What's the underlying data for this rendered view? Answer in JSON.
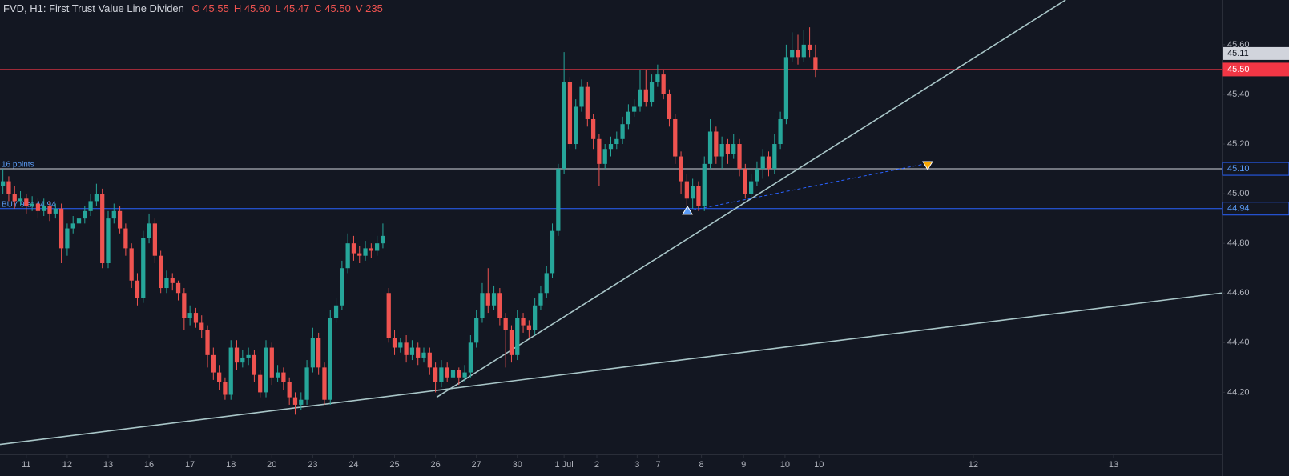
{
  "chart_data": {
    "type": "candlestick",
    "title": "FVD, H1: First Trust Value Line Dividen",
    "header_fields": [
      {
        "label": "O",
        "value": 45.55
      },
      {
        "label": "H",
        "value": 45.6,
        "value_label": "45.60"
      },
      {
        "label": "L",
        "value": 45.47
      },
      {
        "label": "C",
        "value": 45.5,
        "value_label": "45.50"
      },
      {
        "label": "V",
        "value": 235
      }
    ],
    "up_color": "#26a69a",
    "down_color": "#ef5350",
    "xlim": [
      -0.5,
      208.5
    ],
    "ylim": [
      43.95,
      45.78
    ],
    "grid": false,
    "xticks": [
      {
        "value": 4,
        "label": "11"
      },
      {
        "value": 11,
        "label": "12"
      },
      {
        "value": 18,
        "label": "13"
      },
      {
        "value": 25,
        "label": "16"
      },
      {
        "value": 32,
        "label": "17"
      },
      {
        "value": 39,
        "label": "18"
      },
      {
        "value": 46,
        "label": "20"
      },
      {
        "value": 53,
        "label": "23"
      },
      {
        "value": 60,
        "label": "24"
      },
      {
        "value": 67,
        "label": "25"
      },
      {
        "value": 74,
        "label": "26"
      },
      {
        "value": 81,
        "label": "27"
      },
      {
        "value": 88,
        "label": "30"
      },
      {
        "value": 96,
        "label": "1 Jul"
      },
      {
        "value": 101.6,
        "label": "2"
      },
      {
        "value": 108.5,
        "label": "3"
      },
      {
        "value": 112.1,
        "label": "7"
      },
      {
        "value": 119.5,
        "label": "8"
      },
      {
        "value": 126.7,
        "label": "9"
      },
      {
        "value": 133.8,
        "label": "10"
      },
      {
        "value": 139.6,
        "label": "10"
      },
      {
        "value": 166,
        "label": "12"
      },
      {
        "value": 190,
        "label": "13"
      }
    ],
    "yticks": [
      {
        "value": 44.2,
        "label": "44.20"
      },
      {
        "value": 44.4,
        "label": "44.40"
      },
      {
        "value": 44.6,
        "label": "44.60"
      },
      {
        "value": 44.8,
        "label": "44.80"
      },
      {
        "value": 45.0,
        "label": "45.00"
      },
      {
        "value": 45.2,
        "label": "45.20"
      },
      {
        "value": 45.4,
        "label": "45.40"
      },
      {
        "value": 45.6,
        "label": "45.60"
      }
    ],
    "ohlc": [
      [
        45.03,
        45.1,
        45.0,
        45.05
      ],
      [
        45.05,
        45.07,
        44.97,
        45.0
      ],
      [
        45.0,
        45.03,
        44.94,
        44.97
      ],
      [
        44.97,
        45.01,
        44.95,
        44.98
      ],
      [
        44.98,
        45.0,
        44.92,
        44.95
      ],
      [
        44.95,
        44.99,
        44.93,
        44.96
      ],
      [
        44.96,
        44.98,
        44.9,
        44.93
      ],
      [
        44.93,
        44.98,
        44.91,
        44.95
      ],
      [
        44.95,
        44.97,
        44.89,
        44.92
      ],
      [
        44.92,
        44.96,
        44.9,
        44.94
      ],
      [
        44.94,
        44.96,
        44.72,
        44.78
      ],
      [
        44.78,
        44.88,
        44.75,
        44.86
      ],
      [
        44.86,
        44.91,
        44.84,
        44.88
      ],
      [
        44.88,
        44.93,
        44.86,
        44.9
      ],
      [
        44.9,
        44.95,
        44.88,
        44.93
      ],
      [
        44.93,
        45.0,
        44.91,
        44.97
      ],
      [
        44.97,
        45.04,
        44.95,
        45.0
      ],
      [
        45.0,
        45.02,
        44.7,
        44.72
      ],
      [
        44.72,
        44.93,
        44.7,
        44.9
      ],
      [
        44.9,
        44.96,
        44.88,
        44.93
      ],
      [
        44.93,
        44.95,
        44.84,
        44.86
      ],
      [
        44.86,
        44.88,
        44.75,
        44.78
      ],
      [
        44.78,
        44.8,
        44.62,
        44.65
      ],
      [
        44.65,
        44.68,
        44.55,
        44.58
      ],
      [
        44.58,
        44.85,
        44.56,
        44.82
      ],
      [
        44.82,
        44.92,
        44.8,
        44.88
      ],
      [
        44.88,
        44.9,
        44.72,
        44.75
      ],
      [
        44.75,
        44.77,
        44.6,
        44.62
      ],
      [
        44.62,
        44.69,
        44.6,
        44.66
      ],
      [
        44.66,
        44.68,
        44.61,
        44.64
      ],
      [
        44.64,
        44.65,
        44.57,
        44.6
      ],
      [
        44.6,
        44.62,
        44.45,
        44.5
      ],
      [
        44.5,
        44.55,
        44.47,
        44.52
      ],
      [
        44.52,
        44.54,
        44.46,
        44.48
      ],
      [
        44.48,
        44.51,
        44.42,
        44.45
      ],
      [
        44.45,
        44.47,
        44.3,
        44.35
      ],
      [
        44.35,
        44.38,
        44.25,
        44.28
      ],
      [
        44.28,
        44.31,
        44.21,
        44.24
      ],
      [
        44.24,
        44.26,
        44.17,
        44.19
      ],
      [
        44.19,
        44.41,
        44.17,
        44.38
      ],
      [
        44.38,
        44.41,
        44.29,
        44.32
      ],
      [
        44.32,
        44.37,
        44.3,
        44.34
      ],
      [
        44.34,
        44.38,
        44.31,
        44.35
      ],
      [
        44.35,
        44.37,
        44.24,
        44.27
      ],
      [
        44.27,
        44.29,
        44.18,
        44.2
      ],
      [
        44.2,
        44.41,
        44.18,
        44.38
      ],
      [
        44.38,
        44.4,
        44.23,
        44.26
      ],
      [
        44.26,
        44.31,
        44.24,
        44.28
      ],
      [
        44.28,
        44.3,
        44.21,
        44.24
      ],
      [
        44.24,
        44.26,
        44.15,
        44.18
      ],
      [
        44.18,
        44.2,
        44.11,
        44.15
      ],
      [
        44.15,
        44.2,
        44.13,
        44.17
      ],
      [
        44.17,
        44.33,
        44.15,
        44.3
      ],
      [
        44.3,
        44.46,
        44.28,
        44.42
      ],
      [
        44.42,
        44.44,
        44.27,
        44.3
      ],
      [
        44.3,
        44.32,
        44.15,
        44.17
      ],
      [
        44.17,
        44.53,
        44.15,
        44.5
      ],
      [
        44.5,
        44.58,
        44.48,
        44.55
      ],
      [
        44.55,
        44.73,
        44.53,
        44.7
      ],
      [
        44.7,
        44.84,
        44.68,
        44.8
      ],
      [
        44.8,
        44.83,
        44.73,
        44.76
      ],
      [
        44.76,
        44.79,
        44.72,
        44.75
      ],
      [
        44.75,
        44.81,
        44.73,
        44.78
      ],
      [
        44.78,
        44.8,
        44.74,
        44.77
      ],
      [
        44.77,
        44.83,
        44.75,
        44.8
      ],
      [
        44.8,
        44.88,
        44.78,
        44.83
      ],
      [
        44.6,
        44.62,
        44.4,
        44.42
      ],
      [
        44.42,
        44.45,
        44.35,
        44.38
      ],
      [
        44.38,
        44.42,
        44.36,
        44.4
      ],
      [
        44.4,
        44.43,
        44.32,
        44.35
      ],
      [
        44.35,
        44.41,
        44.33,
        44.38
      ],
      [
        44.38,
        44.4,
        44.31,
        44.34
      ],
      [
        44.34,
        44.38,
        44.32,
        44.36
      ],
      [
        44.36,
        44.38,
        44.27,
        44.3
      ],
      [
        44.3,
        44.32,
        44.2,
        44.24
      ],
      [
        44.24,
        44.33,
        44.22,
        44.3
      ],
      [
        44.3,
        44.32,
        44.24,
        44.26
      ],
      [
        44.26,
        44.31,
        44.24,
        44.29
      ],
      [
        44.29,
        44.3,
        44.23,
        44.26
      ],
      [
        44.26,
        44.31,
        44.24,
        44.28
      ],
      [
        44.28,
        44.43,
        44.26,
        44.4
      ],
      [
        44.4,
        44.53,
        44.38,
        44.5
      ],
      [
        44.5,
        44.64,
        44.48,
        44.6
      ],
      [
        44.6,
        44.7,
        44.52,
        44.55
      ],
      [
        44.55,
        44.63,
        44.53,
        44.6
      ],
      [
        44.6,
        44.62,
        44.47,
        44.5
      ],
      [
        44.5,
        44.52,
        44.3,
        44.45
      ],
      [
        44.45,
        44.47,
        44.32,
        44.35
      ],
      [
        44.35,
        44.53,
        44.33,
        44.5
      ],
      [
        44.5,
        44.52,
        44.44,
        44.47
      ],
      [
        44.47,
        44.49,
        44.42,
        44.45
      ],
      [
        44.45,
        44.58,
        44.43,
        44.55
      ],
      [
        44.55,
        44.63,
        44.53,
        44.6
      ],
      [
        44.6,
        44.71,
        44.58,
        44.68
      ],
      [
        44.68,
        44.88,
        44.66,
        44.85
      ],
      [
        44.85,
        45.12,
        44.83,
        45.1
      ],
      [
        45.1,
        45.57,
        45.08,
        45.45
      ],
      [
        45.45,
        45.47,
        45.18,
        45.2
      ],
      [
        45.2,
        45.38,
        45.18,
        45.35
      ],
      [
        45.35,
        45.46,
        45.33,
        45.43
      ],
      [
        45.43,
        45.45,
        45.27,
        45.3
      ],
      [
        45.3,
        45.32,
        45.18,
        45.22
      ],
      [
        45.22,
        45.24,
        45.03,
        45.12
      ],
      [
        45.12,
        45.2,
        45.1,
        45.18
      ],
      [
        45.18,
        45.23,
        45.15,
        45.2
      ],
      [
        45.2,
        45.25,
        45.18,
        45.22
      ],
      [
        45.22,
        45.31,
        45.2,
        45.28
      ],
      [
        45.28,
        45.36,
        45.26,
        45.33
      ],
      [
        45.33,
        45.38,
        45.31,
        45.35
      ],
      [
        45.35,
        45.5,
        45.33,
        45.42
      ],
      [
        45.42,
        45.5,
        45.35,
        45.37
      ],
      [
        45.37,
        45.48,
        45.35,
        45.45
      ],
      [
        45.45,
        45.52,
        45.43,
        45.48
      ],
      [
        45.48,
        45.5,
        45.38,
        45.4
      ],
      [
        45.4,
        45.42,
        45.27,
        45.3
      ],
      [
        45.3,
        45.32,
        45.12,
        45.15
      ],
      [
        45.15,
        45.17,
        45.0,
        45.05
      ],
      [
        45.05,
        45.08,
        44.95,
        44.98
      ],
      [
        44.98,
        45.06,
        44.94,
        45.03
      ],
      [
        45.03,
        45.05,
        44.93,
        44.95
      ],
      [
        44.95,
        45.15,
        44.93,
        45.12
      ],
      [
        45.12,
        45.3,
        45.1,
        45.25
      ],
      [
        45.25,
        45.27,
        45.12,
        45.15
      ],
      [
        45.15,
        45.23,
        45.1,
        45.2
      ],
      [
        45.2,
        45.22,
        45.12,
        45.16
      ],
      [
        45.16,
        45.24,
        45.14,
        45.2
      ],
      [
        45.2,
        45.22,
        45.07,
        45.1
      ],
      [
        45.1,
        45.12,
        44.98,
        45.0
      ],
      [
        45.0,
        45.08,
        44.98,
        45.05
      ],
      [
        45.05,
        45.13,
        45.03,
        45.1
      ],
      [
        45.1,
        45.18,
        45.06,
        45.15
      ],
      [
        45.15,
        45.17,
        45.07,
        45.1
      ],
      [
        45.1,
        45.24,
        45.08,
        45.2
      ],
      [
        45.2,
        45.33,
        45.18,
        45.3
      ],
      [
        45.3,
        45.6,
        45.28,
        45.55
      ],
      [
        45.55,
        45.65,
        45.53,
        45.58
      ],
      [
        45.58,
        45.64,
        45.52,
        45.55
      ],
      [
        45.55,
        45.66,
        45.53,
        45.6
      ],
      [
        45.6,
        45.67,
        45.55,
        45.58
      ],
      [
        45.55,
        45.6,
        45.47,
        45.5
      ]
    ],
    "hlines": [
      {
        "value": 45.5,
        "label": "45.50",
        "color": "#f23645"
      },
      {
        "value": 45.1,
        "label": "45.10",
        "color": "#d1d4dc",
        "tag_color": "#2962ff",
        "text": "16 points"
      },
      {
        "value": 44.94,
        "label": "44.94",
        "color": "#2962ff",
        "tag_color": "#2962ff",
        "text": "BUY 9 at 44.94"
      }
    ],
    "last_tag": {
      "value": 45.11,
      "label": "45.11"
    },
    "lines": [
      {
        "x": [
          74.2,
          181.8
        ],
        "y": [
          44.18,
          45.78
        ],
        "color": "#a9c6c8"
      },
      {
        "x": [
          -0.5,
          208.5
        ],
        "y": [
          43.99,
          44.6
        ],
        "color": "#a9c6c8"
      },
      {
        "x": [
          117.1,
          157.8
        ],
        "y": [
          44.93,
          45.12
        ],
        "color": "#2962ff",
        "dashed": true
      }
    ],
    "markers": [
      {
        "x": 117.1,
        "y": 44.93,
        "shape": "up",
        "color": "#5b9cf6"
      },
      {
        "x": 158.2,
        "y": 45.11,
        "shape": "down",
        "color": "#f7a600"
      }
    ]
  }
}
